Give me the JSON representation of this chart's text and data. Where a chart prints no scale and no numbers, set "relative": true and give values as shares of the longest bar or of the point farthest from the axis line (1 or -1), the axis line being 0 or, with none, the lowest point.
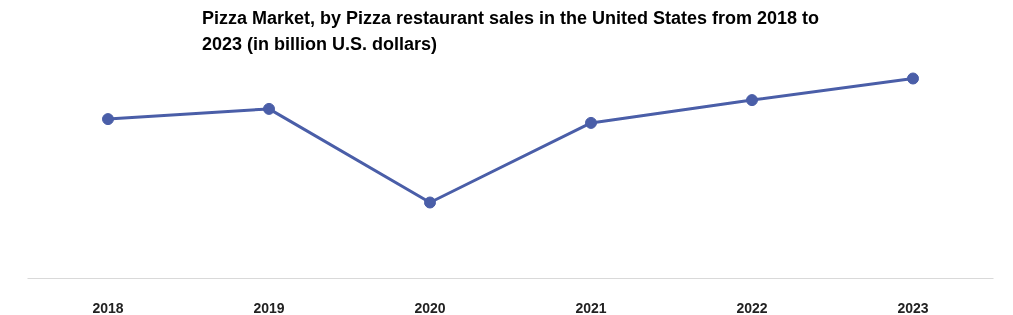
{
  "chart_data": {
    "type": "line",
    "title": "Pizza Market, by Pizza restaurant sales in the United States from 2018 to 2023 (in billion U.S. dollars)",
    "categories": [
      "2018",
      "2019",
      "2020",
      "2021",
      "2022",
      "2023"
    ],
    "relative": true,
    "series": [
      {
        "color": "#4a5ea8",
        "values": [
          0.797,
          0.848,
          0.38,
          0.778,
          0.892,
          1
        ]
      }
    ],
    "marker": "circle",
    "line_style": "solid",
    "grid": false
  }
}
